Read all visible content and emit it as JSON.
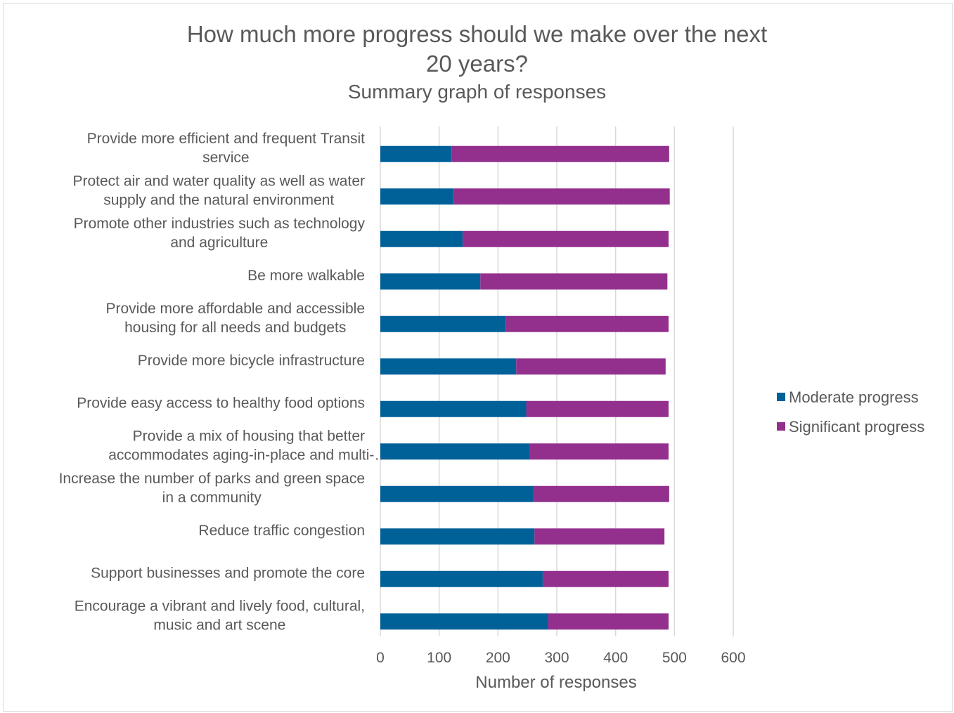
{
  "chart_data": {
    "type": "bar",
    "orientation": "horizontal",
    "stacked": true,
    "title_line1": "How much more progress should we make over the next",
    "title_line2": "20 years?",
    "subtitle": "Summary graph of responses",
    "xlabel": "Number of responses",
    "ylabel": "",
    "xlim": [
      0,
      600
    ],
    "xticks": [
      "0",
      "100",
      "200",
      "300",
      "400",
      "500",
      "600"
    ],
    "grid": "vertical",
    "legend_position": "right",
    "categories": [
      [
        "Provide more efficient and frequent Transit",
        "service"
      ],
      [
        "Protect air and water quality as well as water",
        "supply and the natural environment"
      ],
      [
        "Promote other industries such as technology",
        "and agriculture"
      ],
      [
        "Be more walkable"
      ],
      [
        "Provide more affordable and accessible",
        "housing for all needs and budgets"
      ],
      [
        "Provide more bicycle infrastructure"
      ],
      [
        "Provide easy access to healthy food options"
      ],
      [
        "Provide a mix of housing that better",
        "accommodates aging-in-place and multi-…"
      ],
      [
        "Increase the number of parks and green space",
        "in a community"
      ],
      [
        "Reduce traffic congestion"
      ],
      [
        "Support businesses and promote the core"
      ],
      [
        "Encourage a vibrant and lively food, cultural,",
        "music and art scene"
      ]
    ],
    "series": [
      {
        "name": "Moderate progress",
        "color": "#006199",
        "values": [
          121,
          124,
          140,
          170,
          213,
          231,
          248,
          254,
          260,
          262,
          276,
          285
        ]
      },
      {
        "name": "Significant progress",
        "color": "#93308e",
        "values": [
          370,
          368,
          350,
          318,
          277,
          254,
          242,
          236,
          231,
          221,
          214,
          205
        ]
      }
    ]
  }
}
